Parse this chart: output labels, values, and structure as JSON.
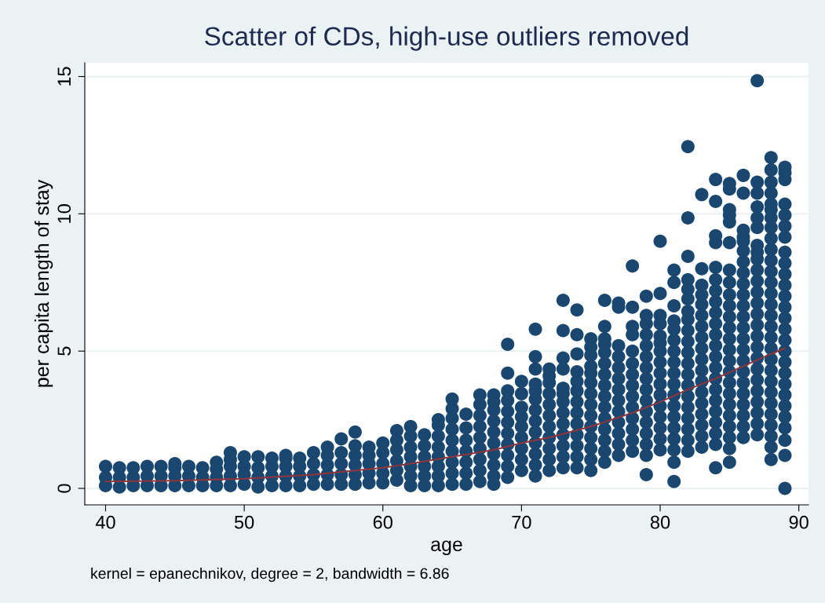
{
  "chart_data": {
    "type": "scatter",
    "title": "Scatter of CDs, high-use outliers removed",
    "xlabel": "age",
    "ylabel": "per capita length of stay",
    "annotations": [
      "kernel = epanechnikov, degree = 2, bandwidth = 6.86"
    ],
    "xlim": [
      38.5,
      90.7
    ],
    "xticks": [
      40,
      50,
      60,
      70,
      80,
      90
    ],
    "ylim": [
      -0.6,
      15.5
    ],
    "yticks": [
      0,
      5,
      10,
      15
    ],
    "grid": "y",
    "legend": false,
    "marker": "circle",
    "series": [
      {
        "color": "#1a476f",
        "x": [
          40,
          40,
          40,
          41,
          41,
          41,
          42,
          42,
          42,
          43,
          43,
          43,
          44,
          44,
          44,
          45,
          45,
          45,
          45,
          46,
          46,
          46,
          47,
          47,
          47,
          48,
          48,
          48,
          48,
          49,
          49,
          49,
          49,
          49,
          50,
          50,
          50,
          50,
          51,
          51,
          51,
          51,
          52,
          52,
          52,
          52,
          53,
          53,
          53,
          53,
          53,
          54,
          54,
          54,
          54,
          55,
          55,
          55,
          55,
          56,
          56,
          56,
          56,
          56,
          57,
          57,
          57,
          57,
          57,
          58,
          58,
          58,
          58,
          58,
          58,
          59,
          59,
          59,
          59,
          59,
          60,
          60,
          60,
          60,
          60,
          61,
          61,
          61,
          61,
          61,
          61,
          62,
          62,
          62,
          62,
          62,
          62,
          62,
          63,
          63,
          63,
          63,
          63,
          63,
          64,
          64,
          64,
          64,
          64,
          64,
          64,
          64,
          65,
          65,
          65,
          65,
          65,
          65,
          65,
          65,
          65,
          66,
          66,
          66,
          66,
          66,
          66,
          66,
          67,
          67,
          67,
          67,
          67,
          67,
          67,
          67,
          67,
          68,
          68,
          68,
          68,
          68,
          68,
          68,
          68,
          68,
          68,
          69,
          69,
          69,
          69,
          69,
          69,
          69,
          69,
          69,
          69,
          69,
          70,
          70,
          70,
          70,
          70,
          70,
          70,
          70,
          70,
          71,
          71,
          71,
          71,
          71,
          71,
          71,
          71,
          71,
          71,
          71,
          71,
          71,
          72,
          72,
          72,
          72,
          72,
          72,
          72,
          72,
          72,
          72,
          72,
          73,
          73,
          73,
          73,
          73,
          73,
          73,
          73,
          73,
          73,
          73,
          73,
          73,
          74,
          74,
          74,
          74,
          74,
          74,
          74,
          74,
          74,
          74,
          74,
          74,
          74,
          75,
          75,
          75,
          75,
          75,
          75,
          75,
          75,
          75,
          75,
          75,
          75,
          75,
          75,
          76,
          76,
          76,
          76,
          76,
          76,
          76,
          76,
          76,
          76,
          76,
          76,
          76,
          76,
          76,
          77,
          77,
          77,
          77,
          77,
          77,
          77,
          77,
          77,
          77,
          77,
          77,
          77,
          78,
          78,
          78,
          78,
          78,
          78,
          78,
          78,
          78,
          78,
          78,
          78,
          78,
          78,
          79,
          79,
          79,
          79,
          79,
          79,
          79,
          79,
          79,
          79,
          79,
          79,
          79,
          79,
          79,
          79,
          80,
          80,
          80,
          80,
          80,
          80,
          80,
          80,
          80,
          80,
          80,
          80,
          80,
          80,
          80,
          80,
          81,
          81,
          81,
          81,
          81,
          81,
          81,
          81,
          81,
          81,
          81,
          81,
          81,
          81,
          81,
          81,
          81,
          81,
          82,
          82,
          82,
          82,
          82,
          82,
          82,
          82,
          82,
          82,
          82,
          82,
          82,
          82,
          82,
          82,
          82,
          82,
          82,
          82,
          83,
          83,
          83,
          83,
          83,
          83,
          83,
          83,
          83,
          83,
          83,
          83,
          83,
          83,
          83,
          83,
          83,
          83,
          84,
          84,
          84,
          84,
          84,
          84,
          84,
          84,
          84,
          84,
          84,
          84,
          84,
          84,
          84,
          84,
          84,
          84,
          84,
          84,
          84,
          84,
          85,
          85,
          85,
          85,
          85,
          85,
          85,
          85,
          85,
          85,
          85,
          85,
          85,
          85,
          85,
          85,
          85,
          85,
          85,
          85,
          85,
          85,
          85,
          85,
          86,
          86,
          86,
          86,
          86,
          86,
          86,
          86,
          86,
          86,
          86,
          86,
          86,
          86,
          86,
          86,
          86,
          86,
          86,
          86,
          86,
          86,
          86,
          87,
          87,
          87,
          87,
          87,
          87,
          87,
          87,
          87,
          87,
          87,
          87,
          87,
          87,
          87,
          87,
          87,
          87,
          87,
          87,
          87,
          87,
          87,
          87,
          87,
          88,
          88,
          88,
          88,
          88,
          88,
          88,
          88,
          88,
          88,
          88,
          88,
          88,
          88,
          88,
          88,
          88,
          88,
          88,
          88,
          88,
          88,
          88,
          88,
          88,
          88,
          88,
          88,
          88,
          89,
          89,
          89,
          89,
          89,
          89,
          89,
          89,
          89,
          89,
          89,
          89,
          89,
          89,
          89,
          89,
          89,
          89,
          89,
          89,
          89,
          89,
          89,
          89,
          89,
          89,
          89
        ],
        "values": [
          0.1,
          0.4,
          0.8,
          0.05,
          0.4,
          0.75,
          0.1,
          0.4,
          0.75,
          0.1,
          0.45,
          0.8,
          0.1,
          0.45,
          0.8,
          0.1,
          0.45,
          0.75,
          0.9,
          0.1,
          0.45,
          0.8,
          0.1,
          0.4,
          0.75,
          0.1,
          0.4,
          0.7,
          0.95,
          0.1,
          0.45,
          0.8,
          1.05,
          1.3,
          0.15,
          0.5,
          0.8,
          1.15,
          0.05,
          0.4,
          0.75,
          1.15,
          0.1,
          0.45,
          0.8,
          1.1,
          0.1,
          0.45,
          0.8,
          1.1,
          1.2,
          0.1,
          0.45,
          0.8,
          1.1,
          0.15,
          0.5,
          0.9,
          1.3,
          0.15,
          0.5,
          0.85,
          1.2,
          1.5,
          0.15,
          0.5,
          0.9,
          1.3,
          1.8,
          0.15,
          0.5,
          0.85,
          1.2,
          1.55,
          2.05,
          0.2,
          0.55,
          0.9,
          1.2,
          1.5,
          0.2,
          0.55,
          0.9,
          1.3,
          1.65,
          0.3,
          0.65,
          1.0,
          1.4,
          1.75,
          2.1,
          0.1,
          0.45,
          0.8,
          1.15,
          1.5,
          1.9,
          2.25,
          0.1,
          0.45,
          0.8,
          1.15,
          1.55,
          1.95,
          0.1,
          0.45,
          0.8,
          1.15,
          1.5,
          1.9,
          2.3,
          2.5,
          0.15,
          0.55,
          0.95,
          1.35,
          1.75,
          2.15,
          2.55,
          2.9,
          3.25,
          0.15,
          0.55,
          0.95,
          1.35,
          1.75,
          2.2,
          2.7,
          0.25,
          0.65,
          1.05,
          1.45,
          1.85,
          2.25,
          2.65,
          3.05,
          3.4,
          0.15,
          0.45,
          0.85,
          1.25,
          1.65,
          2.05,
          2.45,
          2.85,
          3.15,
          3.4,
          0.4,
          0.8,
          1.2,
          1.6,
          2.0,
          2.4,
          2.8,
          3.2,
          3.55,
          4.2,
          5.25,
          0.65,
          1.05,
          1.45,
          1.85,
          2.25,
          2.6,
          2.95,
          3.45,
          3.9,
          0.45,
          0.85,
          1.25,
          1.65,
          2.05,
          2.45,
          2.85,
          3.25,
          3.55,
          3.8,
          4.35,
          4.8,
          5.8,
          0.65,
          1.05,
          1.45,
          1.85,
          2.25,
          2.65,
          3.05,
          3.45,
          3.85,
          4.1,
          4.35,
          0.75,
          1.15,
          1.55,
          1.95,
          2.35,
          2.75,
          3.15,
          3.45,
          3.65,
          4.35,
          4.75,
          5.75,
          6.85,
          0.75,
          1.15,
          1.55,
          1.95,
          2.35,
          2.75,
          3.15,
          3.55,
          3.9,
          4.25,
          4.9,
          5.6,
          6.5,
          0.65,
          1.05,
          1.45,
          1.85,
          2.25,
          2.65,
          3.05,
          3.45,
          3.85,
          4.2,
          4.45,
          4.85,
          5.15,
          5.45,
          0.95,
          1.35,
          1.75,
          2.15,
          2.55,
          2.95,
          3.35,
          3.75,
          4.15,
          4.55,
          4.95,
          5.25,
          5.45,
          5.9,
          6.85,
          1.2,
          1.6,
          2.0,
          2.4,
          2.8,
          3.2,
          3.6,
          4.0,
          4.4,
          4.8,
          5.2,
          6.6,
          6.75,
          1.35,
          1.75,
          2.15,
          2.55,
          2.95,
          3.35,
          3.75,
          4.15,
          4.55,
          5.0,
          5.6,
          5.9,
          6.6,
          8.1,
          0.5,
          1.2,
          1.6,
          2.0,
          2.4,
          2.8,
          3.2,
          3.6,
          4.0,
          4.4,
          4.8,
          5.2,
          5.6,
          6.0,
          6.3,
          7.0,
          1.4,
          1.8,
          2.2,
          2.6,
          3.0,
          3.4,
          3.8,
          4.2,
          4.6,
          5.0,
          5.3,
          5.55,
          6.0,
          6.3,
          7.1,
          9.0,
          0.25,
          0.95,
          1.4,
          1.8,
          2.2,
          2.6,
          3.0,
          3.4,
          3.8,
          4.2,
          4.6,
          5.0,
          5.4,
          5.8,
          6.1,
          6.65,
          7.5,
          7.95,
          1.35,
          1.75,
          2.15,
          2.55,
          2.95,
          3.35,
          3.75,
          4.15,
          4.55,
          4.95,
          5.35,
          5.75,
          6.15,
          6.45,
          6.9,
          7.25,
          7.6,
          8.45,
          9.85,
          12.45,
          1.5,
          1.9,
          2.3,
          2.7,
          3.1,
          3.5,
          3.9,
          4.3,
          4.7,
          5.1,
          5.5,
          5.9,
          6.3,
          6.7,
          7.05,
          7.4,
          8.0,
          10.7,
          0.75,
          1.6,
          2.0,
          2.4,
          2.8,
          3.2,
          3.6,
          4.0,
          4.4,
          4.8,
          5.2,
          5.6,
          6.0,
          6.4,
          6.8,
          7.2,
          7.6,
          8.05,
          8.95,
          9.2,
          10.45,
          11.25,
          0.95,
          1.45,
          1.85,
          2.25,
          2.65,
          3.05,
          3.45,
          3.85,
          4.25,
          4.65,
          5.05,
          5.45,
          5.85,
          6.25,
          6.65,
          7.05,
          7.5,
          7.95,
          8.95,
          9.7,
          9.95,
          10.15,
          10.9,
          11.1,
          1.85,
          2.25,
          2.65,
          3.05,
          3.45,
          3.85,
          4.25,
          4.65,
          5.05,
          5.45,
          5.85,
          6.25,
          6.65,
          7.05,
          7.45,
          7.85,
          8.25,
          8.65,
          9.0,
          9.15,
          9.4,
          10.75,
          11.4,
          1.95,
          2.35,
          2.75,
          3.15,
          3.55,
          3.95,
          4.35,
          4.75,
          5.15,
          5.55,
          5.95,
          6.35,
          6.75,
          7.15,
          7.55,
          7.95,
          8.35,
          8.6,
          8.85,
          9.5,
          9.85,
          10.25,
          10.75,
          11.15,
          14.85,
          1.05,
          1.5,
          1.9,
          2.3,
          2.7,
          3.1,
          3.5,
          3.9,
          4.3,
          4.7,
          5.1,
          5.5,
          5.9,
          6.3,
          6.7,
          7.1,
          7.5,
          7.9,
          8.3,
          8.7,
          9.1,
          9.5,
          9.85,
          10.15,
          10.35,
          10.75,
          11.15,
          11.6,
          12.05,
          0.0,
          1.2,
          1.75,
          2.2,
          2.6,
          3.0,
          3.4,
          3.8,
          4.2,
          4.6,
          5.0,
          5.4,
          5.8,
          6.2,
          6.6,
          7.0,
          7.4,
          7.8,
          8.2,
          8.6,
          9.15,
          9.55,
          9.95,
          10.35,
          11.25,
          11.5,
          11.7
        ]
      },
      {
        "type": "line",
        "color": "#90353b",
        "marker": "none",
        "line_style": "solid",
        "x": [
          40,
          45,
          50,
          55,
          60,
          62,
          65,
          68,
          70,
          72,
          75,
          78,
          80,
          82,
          84,
          86,
          88,
          89
        ],
        "values": [
          0.25,
          0.28,
          0.35,
          0.5,
          0.75,
          0.9,
          1.15,
          1.4,
          1.65,
          1.85,
          2.25,
          2.75,
          3.15,
          3.6,
          4.0,
          4.45,
          4.9,
          5.1
        ]
      }
    ]
  }
}
